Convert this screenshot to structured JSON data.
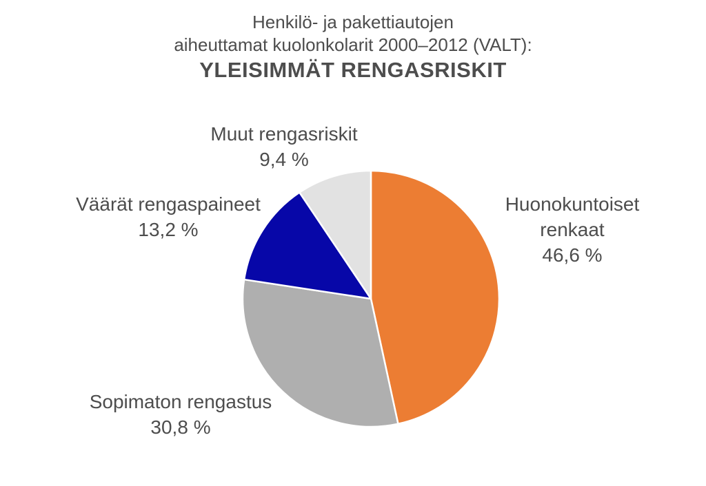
{
  "title": {
    "line1": "Henkilö- ja pakettiautojen",
    "line2": "aiheuttamat kuolonkolarit 2000–2012 (VALT):",
    "line3": "YLEISIMMÄT RENGASRISKIT"
  },
  "chart_data": {
    "type": "pie",
    "title": "Henkilö- ja pakettiautojen aiheuttamat kuolonkolarit 2000–2012 (VALT): YLEISIMMÄT RENGASRISKIT",
    "start_angle_deg_from_top": 0,
    "direction": "clockwise",
    "legend_position": "none",
    "labels_position": "outside",
    "separator_color": "#ffffff",
    "text_color": "#4d4d4d",
    "background_color": "#ffffff",
    "slices": [
      {
        "label": "Huonokuntoiset renkaat",
        "value": 46.6,
        "display_value": "46,6 %",
        "color": "#ec7d33"
      },
      {
        "label": "Sopimaton rengastus",
        "value": 30.8,
        "display_value": "30,8 %",
        "color": "#afafaf"
      },
      {
        "label": "Väärät rengaspaineet",
        "value": 13.2,
        "display_value": "13,2 %",
        "color": "#0707a8"
      },
      {
        "label": "Muut rengasriskit",
        "value": 9.4,
        "display_value": "9,4 %",
        "color": "#e2e2e2"
      }
    ]
  }
}
